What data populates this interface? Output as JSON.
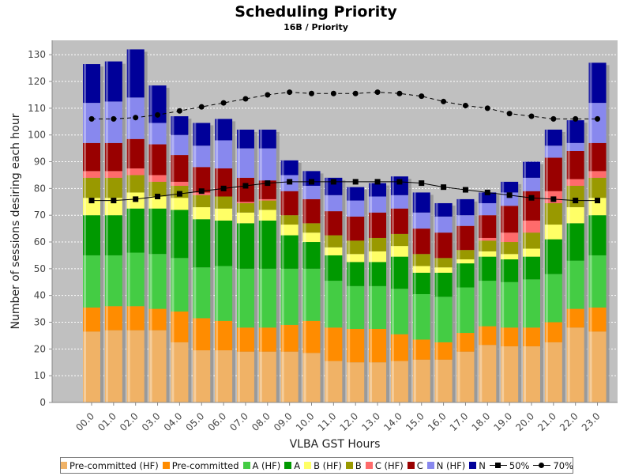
{
  "chart_data": {
    "type": "bar",
    "title": "Scheduling Priority",
    "subtitle": "16B /  Priority",
    "xlabel": "VLBA GST Hours",
    "ylabel": "Number of sessions desiring each hour",
    "ylim": [
      0,
      135
    ],
    "yticks": [
      0,
      10,
      20,
      30,
      40,
      50,
      60,
      70,
      80,
      90,
      100,
      110,
      120,
      130
    ],
    "grid": true,
    "legend_position": "bottom",
    "categories": [
      "00.0",
      "01.0",
      "02.0",
      "03.0",
      "04.0",
      "05.0",
      "06.0",
      "07.0",
      "08.0",
      "09.0",
      "10.0",
      "11.0",
      "12.0",
      "13.0",
      "14.0",
      "15.0",
      "16.0",
      "17.0",
      "18.0",
      "19.0",
      "20.0",
      "21.0",
      "22.0",
      "23.0"
    ],
    "series": [
      {
        "name": "Pre-committed (HF)",
        "color": "#f0b266",
        "values": [
          26.5,
          27,
          27,
          27,
          22.5,
          19.5,
          19.5,
          19,
          19,
          19,
          18.5,
          15.5,
          15,
          15,
          15.5,
          16,
          16,
          19,
          21.5,
          21,
          21,
          22.5,
          28,
          26.5
        ]
      },
      {
        "name": "Pre-committed",
        "color": "#ff8c00",
        "values": [
          9,
          9,
          9,
          8,
          11.5,
          12,
          11,
          9,
          9,
          10,
          12,
          12.5,
          12.5,
          12.5,
          10,
          7.5,
          6.5,
          7,
          7,
          7,
          7,
          7.5,
          7,
          9
        ]
      },
      {
        "name": "A (HF)",
        "color": "#44cc44",
        "values": [
          19.5,
          19,
          20,
          20.5,
          20,
          19,
          20.5,
          22,
          22,
          21,
          19.5,
          17.5,
          16,
          16,
          17,
          17,
          17,
          17,
          17,
          17,
          18,
          18,
          18,
          19.5
        ]
      },
      {
        "name": "A",
        "color": "#009900",
        "values": [
          15,
          15,
          16.5,
          17,
          18,
          18,
          17,
          17,
          18,
          12.5,
          10,
          9.5,
          9,
          9,
          12,
          8,
          9,
          9,
          9,
          8.5,
          8.5,
          13,
          14,
          15
        ]
      },
      {
        "name": "B (HF)",
        "color": "#ffff66",
        "values": [
          6.5,
          6.5,
          6,
          4.5,
          4.5,
          4.5,
          4.5,
          4,
          4,
          4,
          3.5,
          3,
          3,
          4,
          4,
          2.5,
          2,
          1.5,
          2,
          2,
          3,
          5.5,
          6,
          6.5
        ]
      },
      {
        "name": "B",
        "color": "#999900",
        "values": [
          7.5,
          7.5,
          6.5,
          5.5,
          4.5,
          4.5,
          4.5,
          3.5,
          3.5,
          3.5,
          3.5,
          4.5,
          5,
          5,
          4.5,
          4.5,
          3.5,
          3.5,
          4,
          4.5,
          6,
          8,
          8,
          7.5
        ]
      },
      {
        "name": "C (HF)",
        "color": "#ff6b6b",
        "values": [
          2.5,
          2.5,
          2.5,
          2.5,
          1.5,
          1,
          0,
          0.5,
          0.5,
          0,
          0,
          0,
          0,
          0,
          0,
          0,
          0,
          0,
          1,
          3.5,
          4.5,
          4.5,
          2.5,
          2.5
        ]
      },
      {
        "name": "C",
        "color": "#990000",
        "values": [
          10.5,
          10.5,
          11,
          11.5,
          10,
          9.5,
          10.5,
          9,
          7,
          9,
          9,
          9,
          9,
          9.5,
          9.5,
          9.5,
          9.5,
          9,
          8.5,
          10,
          11,
          12.5,
          10.5,
          10.5
        ]
      },
      {
        "name": "N (HF)",
        "color": "#8888ee",
        "values": [
          15,
          15.5,
          15.5,
          8,
          7.5,
          8,
          10.5,
          11,
          12,
          6,
          5,
          6,
          6,
          6,
          5,
          6,
          6,
          4,
          4.5,
          5,
          5,
          4.5,
          3,
          15
        ]
      },
      {
        "name": "N",
        "color": "#000099",
        "values": [
          14.5,
          15,
          18,
          14,
          7,
          8.5,
          8,
          7,
          7,
          5.5,
          5.5,
          6.5,
          5,
          5,
          7,
          7.5,
          5,
          6,
          4,
          4,
          6,
          6,
          8.5,
          15
        ]
      }
    ],
    "lines": [
      {
        "name": "50%",
        "marker": "square",
        "color": "#000000",
        "values": [
          75.5,
          75.5,
          76,
          77,
          78,
          79,
          80,
          81,
          82,
          82.5,
          82.5,
          82.5,
          82.5,
          82.5,
          82.5,
          82,
          80.5,
          79.5,
          78.5,
          77.5,
          76.5,
          76,
          75.5,
          75.5
        ]
      },
      {
        "name": "70%",
        "marker": "circle",
        "color": "#000000",
        "dashed": true,
        "values": [
          106,
          106,
          106.5,
          107.5,
          109,
          110.5,
          112,
          113.5,
          115,
          116,
          115.5,
          115.5,
          115.5,
          116,
          115.5,
          114.5,
          112.5,
          111,
          110,
          108,
          107,
          106,
          106,
          106
        ]
      }
    ]
  }
}
